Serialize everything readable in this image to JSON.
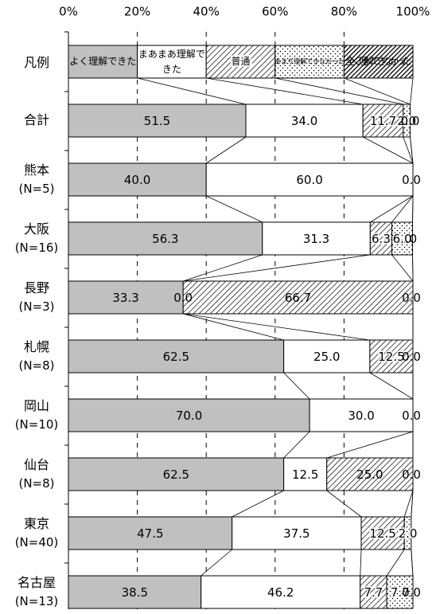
{
  "chart_data": {
    "type": "bar",
    "orientation": "horizontal",
    "stacked": "percent",
    "title": "",
    "xlabel": "",
    "ylabel": "",
    "xlim": [
      0,
      100
    ],
    "x_ticks": [
      "0%",
      "20%",
      "40%",
      "60%",
      "80%",
      "100%"
    ],
    "grid": "vertical dashed at 20% intervals",
    "legend": {
      "position": "first row of chart",
      "row_label": "凡例",
      "entries": [
        "よく理解できた",
        "まあまあ理解できた",
        "普通",
        "あまり理解できなかった",
        "全く理解できなかった"
      ]
    },
    "categories": [
      "合計",
      "熊本 (N=5)",
      "大阪 (N=16)",
      "長野 (N=3)",
      "札幌 (N=8)",
      "岡山 (N=10)",
      "仙台 (N=8)",
      "東京 (N=40)",
      "名古屋 (N=13)"
    ],
    "row_labels": [
      [
        "合計"
      ],
      [
        "熊本",
        "(N=5)"
      ],
      [
        "大阪",
        "(N=16)"
      ],
      [
        "長野",
        "(N=3)"
      ],
      [
        "札幌",
        "(N=8)"
      ],
      [
        "岡山",
        "(N=10)"
      ],
      [
        "仙台",
        "(N=8)"
      ],
      [
        "東京",
        "(N=40)"
      ],
      [
        "名古屋",
        "(N=13)"
      ]
    ],
    "series": [
      {
        "name": "よく理解できた",
        "fill": "#c0c0c0",
        "values": [
          51.5,
          40.0,
          56.3,
          33.3,
          62.5,
          70.0,
          62.5,
          47.5,
          38.5
        ]
      },
      {
        "name": "まあまあ理解できた",
        "fill": "#ffffff",
        "values": [
          34.0,
          60.0,
          31.3,
          0.0,
          25.0,
          30.0,
          12.5,
          37.5,
          46.2
        ]
      },
      {
        "name": "普通",
        "fill": "diagonal-hatch",
        "values": [
          11.7,
          0.0,
          6.3,
          66.7,
          12.5,
          0.0,
          25.0,
          12.5,
          7.7
        ]
      },
      {
        "name": "あまり理解できなかった",
        "fill": "dots",
        "values": [
          2.0,
          0.0,
          6.0,
          0.0,
          0.0,
          0.0,
          0.0,
          2.0,
          7.7
        ]
      },
      {
        "name": "全く理解できなかった",
        "fill": "dense-hatch",
        "values": [
          0.0,
          0.0,
          0.0,
          0.0,
          0.0,
          0.0,
          0.0,
          0.0,
          0.0
        ]
      }
    ],
    "data_labels": [
      [
        "51.5",
        "34.0",
        "11.7",
        "2.0",
        "0.0"
      ],
      [
        "40.0",
        "60.0",
        "",
        "",
        "0.0"
      ],
      [
        "56.3",
        "31.3",
        "6.3",
        "6.0",
        ".0"
      ],
      [
        "33.3",
        "0.0",
        "66.7",
        "",
        "0.0"
      ],
      [
        "62.5",
        "25.0",
        "12.5",
        "0.0",
        ""
      ],
      [
        "70.0",
        "30.0",
        "",
        "",
        "0.0"
      ],
      [
        "62.5",
        "12.5",
        "25.0",
        "",
        "0.0"
      ],
      [
        "47.5",
        "37.5",
        "12.5",
        "2.0",
        ""
      ],
      [
        "38.5",
        "46.2",
        "7.7",
        "7.7",
        "0.0"
      ]
    ]
  }
}
